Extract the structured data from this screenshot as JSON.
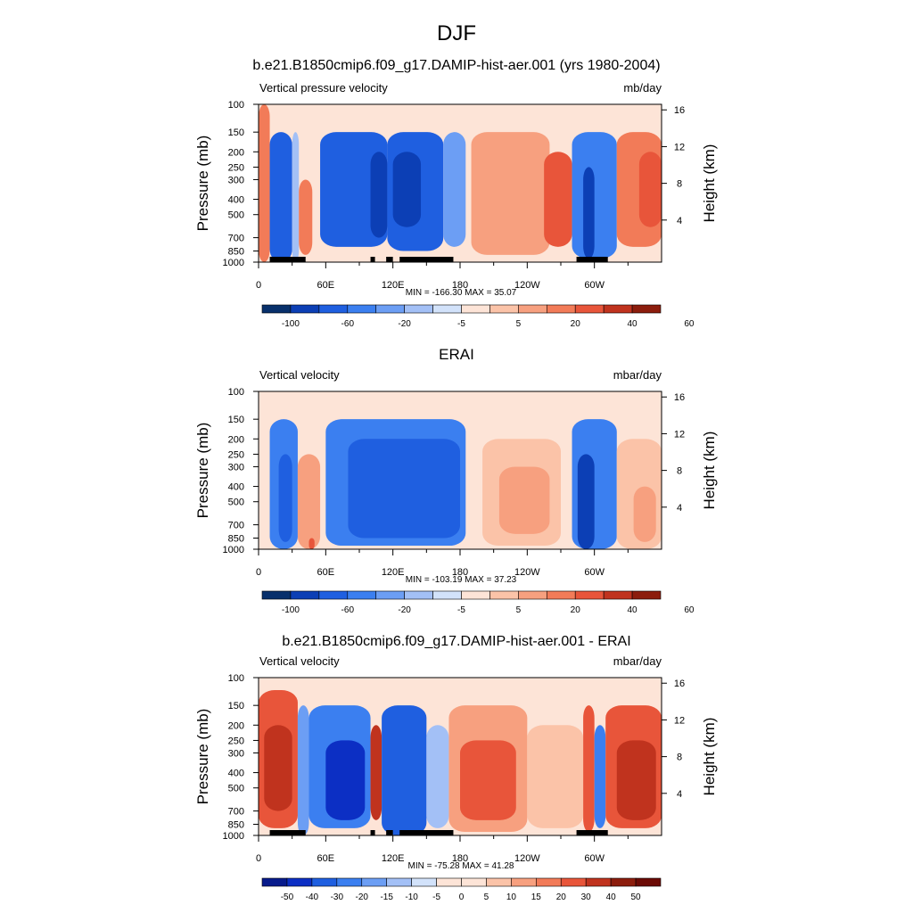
{
  "page": {
    "main_title": "DJF"
  },
  "colors": {
    "palette_12": [
      "#08306b",
      "#0c3fb5",
      "#1f5fe0",
      "#3b7ff0",
      "#6c9ef4",
      "#a3c0f6",
      "#d2e2fa",
      "#fde4d7",
      "#fbc3a8",
      "#f7a07f",
      "#f27b58",
      "#e8553a",
      "#c0331e",
      "#8c1d0d"
    ],
    "palette_diff": [
      "#081b8c",
      "#0c2fc4",
      "#1f5fe0",
      "#3b7ff0",
      "#6c9ef4",
      "#a3c0f6",
      "#d2e2fa",
      "#fde4d7",
      "#fbc3a8",
      "#f7a07f",
      "#f27b58",
      "#e8553a",
      "#c0331e",
      "#8c1d0d",
      "#6b0a05"
    ],
    "land": "#000000"
  },
  "panels": [
    {
      "title": "b.e21.B1850cmip6.f09_g17.DAMIP-hist-aer.001 (yrs 1980-2004)",
      "left_label": "Vertical pressure velocity",
      "right_label": "mb/day",
      "y_axis_label": "Pressure (mb)",
      "y2_axis_label": "Height (km)",
      "stats": "MIN = -166.30  MAX =  35.07",
      "colorbar_labels": [
        "-100",
        "-60",
        "-20",
        "-5",
        "5",
        "20",
        "40",
        "60"
      ],
      "colorbar_levels": 14
    },
    {
      "title": "ERAI",
      "left_label": "Vertical velocity",
      "right_label": "mbar/day",
      "y_axis_label": "Pressure (mb)",
      "y2_axis_label": "Height (km)",
      "stats": "MIN = -103.19  MAX =  37.23",
      "colorbar_labels": [
        "-100",
        "-60",
        "-20",
        "-5",
        "5",
        "20",
        "40",
        "60"
      ],
      "colorbar_levels": 14
    },
    {
      "title": "b.e21.B1850cmip6.f09_g17.DAMIP-hist-aer.001 - ERAI",
      "left_label": "Vertical velocity",
      "right_label": "mbar/day",
      "y_axis_label": "Pressure (mb)",
      "y2_axis_label": "Height (km)",
      "stats": "MIN = -75.28  MAX =  41.28",
      "colorbar_labels": [
        "-50",
        "-40",
        "-30",
        "-20",
        "-15",
        "-10",
        "-5",
        "0",
        "5",
        "10",
        "15",
        "20",
        "30",
        "40",
        "50"
      ],
      "colorbar_levels": 16
    }
  ],
  "chart_data": [
    {
      "type": "heatmap",
      "title": "b.e21.B1850cmip6.f09_g17.DAMIP-hist-aer.001 (yrs 1980-2004)",
      "ylabel": "Pressure (mb)",
      "y2label": "Height (km)",
      "xticks": [
        "0",
        "60E",
        "120E",
        "180",
        "120W",
        "60W"
      ],
      "xtick_values": [
        0,
        60,
        120,
        180,
        240,
        300
      ],
      "xlim": [
        0,
        360
      ],
      "yticks": [
        "100",
        "150",
        "200",
        "250",
        "300",
        "400",
        "500",
        "700",
        "850",
        "1000"
      ],
      "ytick_values": [
        100,
        150,
        200,
        250,
        300,
        400,
        500,
        700,
        850,
        1000
      ],
      "ylim": [
        1000,
        100
      ],
      "y2ticks": [
        "4",
        "8",
        "12",
        "16"
      ],
      "y2tick_values": [
        4,
        8,
        12,
        16
      ],
      "units": "mb/day",
      "min": -166.3,
      "max": 35.07,
      "land_lon_ranges": [
        [
          10,
          42
        ],
        [
          100,
          104
        ],
        [
          114,
          120
        ],
        [
          126,
          174
        ],
        [
          284,
          312
        ]
      ],
      "regions": [
        {
          "lon": [
            0,
            10
          ],
          "p": [
            100,
            1000
          ],
          "level": 10
        },
        {
          "lon": [
            10,
            30
          ],
          "p": [
            150,
            1000
          ],
          "level": 2
        },
        {
          "lon": [
            30,
            36
          ],
          "p": [
            150,
            1000
          ],
          "level": 5
        },
        {
          "lon": [
            36,
            48
          ],
          "p": [
            300,
            900
          ],
          "level": 10
        },
        {
          "lon": [
            48,
            60
          ],
          "p": [
            100,
            150
          ],
          "level": 7
        },
        {
          "lon": [
            55,
            115
          ],
          "p": [
            150,
            800
          ],
          "level": 2
        },
        {
          "lon": [
            100,
            115
          ],
          "p": [
            200,
            700
          ],
          "level": 1
        },
        {
          "lon": [
            115,
            165
          ],
          "p": [
            150,
            850
          ],
          "level": 2
        },
        {
          "lon": [
            120,
            145
          ],
          "p": [
            200,
            600
          ],
          "level": 1
        },
        {
          "lon": [
            165,
            185
          ],
          "p": [
            150,
            800
          ],
          "level": 4
        },
        {
          "lon": [
            190,
            260
          ],
          "p": [
            150,
            900
          ],
          "level": 9
        },
        {
          "lon": [
            255,
            280
          ],
          "p": [
            200,
            800
          ],
          "level": 11
        },
        {
          "lon": [
            280,
            320
          ],
          "p": [
            150,
            950
          ],
          "level": 3
        },
        {
          "lon": [
            290,
            300
          ],
          "p": [
            250,
            950
          ],
          "level": 1
        },
        {
          "lon": [
            320,
            360
          ],
          "p": [
            150,
            800
          ],
          "level": 10
        },
        {
          "lon": [
            340,
            360
          ],
          "p": [
            200,
            600
          ],
          "level": 11
        }
      ]
    },
    {
      "type": "heatmap",
      "title": "ERAI",
      "ylabel": "Pressure (mb)",
      "y2label": "Height (km)",
      "xticks": [
        "0",
        "60E",
        "120E",
        "180",
        "120W",
        "60W"
      ],
      "xtick_values": [
        0,
        60,
        120,
        180,
        240,
        300
      ],
      "xlim": [
        0,
        360
      ],
      "yticks": [
        "100",
        "150",
        "200",
        "250",
        "300",
        "400",
        "500",
        "700",
        "850",
        "1000"
      ],
      "ytick_values": [
        100,
        150,
        200,
        250,
        300,
        400,
        500,
        700,
        850,
        1000
      ],
      "ylim": [
        1000,
        100
      ],
      "y2ticks": [
        "4",
        "8",
        "12",
        "16"
      ],
      "y2tick_values": [
        4,
        8,
        12,
        16
      ],
      "units": "mbar/day",
      "min": -103.19,
      "max": 37.23,
      "land_lon_ranges": [],
      "regions": [
        {
          "lon": [
            10,
            35
          ],
          "p": [
            150,
            1000
          ],
          "level": 3
        },
        {
          "lon": [
            18,
            30
          ],
          "p": [
            250,
            900
          ],
          "level": 2
        },
        {
          "lon": [
            35,
            55
          ],
          "p": [
            250,
            1000
          ],
          "level": 9
        },
        {
          "lon": [
            45,
            50
          ],
          "p": [
            850,
            1000
          ],
          "level": 11
        },
        {
          "lon": [
            60,
            185
          ],
          "p": [
            150,
            950
          ],
          "level": 3
        },
        {
          "lon": [
            80,
            180
          ],
          "p": [
            200,
            850
          ],
          "level": 2
        },
        {
          "lon": [
            200,
            270
          ],
          "p": [
            200,
            950
          ],
          "level": 8
        },
        {
          "lon": [
            215,
            260
          ],
          "p": [
            300,
            800
          ],
          "level": 9
        },
        {
          "lon": [
            280,
            320
          ],
          "p": [
            150,
            1000
          ],
          "level": 3
        },
        {
          "lon": [
            285,
            300
          ],
          "p": [
            250,
            1000
          ],
          "level": 1
        },
        {
          "lon": [
            320,
            360
          ],
          "p": [
            200,
            1000
          ],
          "level": 8
        },
        {
          "lon": [
            335,
            355
          ],
          "p": [
            400,
            900
          ],
          "level": 9
        }
      ]
    },
    {
      "type": "heatmap",
      "title": "b.e21.B1850cmip6.f09_g17.DAMIP-hist-aer.001 - ERAI",
      "ylabel": "Pressure (mb)",
      "y2label": "Height (km)",
      "xticks": [
        "0",
        "60E",
        "120E",
        "180",
        "120W",
        "60W"
      ],
      "xtick_values": [
        0,
        60,
        120,
        180,
        240,
        300
      ],
      "xlim": [
        0,
        360
      ],
      "yticks": [
        "100",
        "150",
        "200",
        "250",
        "300",
        "400",
        "500",
        "700",
        "850",
        "1000"
      ],
      "ytick_values": [
        100,
        150,
        200,
        250,
        300,
        400,
        500,
        700,
        850,
        1000
      ],
      "ylim": [
        1000,
        100
      ],
      "y2ticks": [
        "4",
        "8",
        "12",
        "16"
      ],
      "y2tick_values": [
        4,
        8,
        12,
        16
      ],
      "units": "mbar/day",
      "min": -75.28,
      "max": 41.28,
      "land_lon_ranges": [
        [
          10,
          42
        ],
        [
          100,
          104
        ],
        [
          114,
          120
        ],
        [
          126,
          174
        ],
        [
          284,
          312
        ]
      ],
      "regions": [
        {
          "lon": [
            0,
            35
          ],
          "p": [
            120,
            900
          ],
          "level": 11
        },
        {
          "lon": [
            5,
            30
          ],
          "p": [
            200,
            700
          ],
          "level": 12
        },
        {
          "lon": [
            35,
            45
          ],
          "p": [
            150,
            1000
          ],
          "level": 4
        },
        {
          "lon": [
            45,
            100
          ],
          "p": [
            150,
            900
          ],
          "level": 3
        },
        {
          "lon": [
            60,
            95
          ],
          "p": [
            250,
            800
          ],
          "level": 1
        },
        {
          "lon": [
            100,
            110
          ],
          "p": [
            200,
            800
          ],
          "level": 12
        },
        {
          "lon": [
            110,
            150
          ],
          "p": [
            150,
            1000
          ],
          "level": 2
        },
        {
          "lon": [
            150,
            170
          ],
          "p": [
            200,
            900
          ],
          "level": 5
        },
        {
          "lon": [
            170,
            240
          ],
          "p": [
            150,
            950
          ],
          "level": 9
        },
        {
          "lon": [
            180,
            230
          ],
          "p": [
            250,
            800
          ],
          "level": 11
        },
        {
          "lon": [
            240,
            290
          ],
          "p": [
            200,
            900
          ],
          "level": 8
        },
        {
          "lon": [
            290,
            300
          ],
          "p": [
            150,
            950
          ],
          "level": 11
        },
        {
          "lon": [
            300,
            310
          ],
          "p": [
            200,
            900
          ],
          "level": 3
        },
        {
          "lon": [
            310,
            360
          ],
          "p": [
            150,
            900
          ],
          "level": 11
        },
        {
          "lon": [
            320,
            355
          ],
          "p": [
            250,
            800
          ],
          "level": 12
        }
      ]
    }
  ]
}
